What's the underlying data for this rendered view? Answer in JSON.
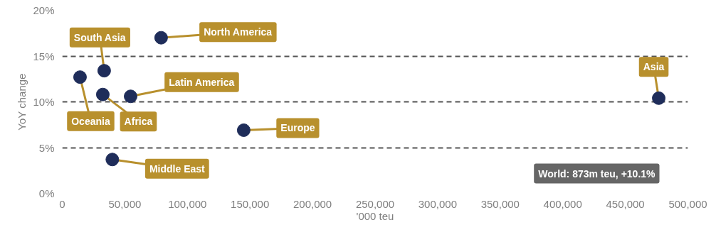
{
  "chart_data": {
    "type": "scatter",
    "xlabel": "'000 teu",
    "ylabel": "YoY change",
    "x": [
      14200,
      33500,
      32400,
      54600,
      79000,
      145000,
      40000,
      476700
    ],
    "series": [
      {
        "color": "#1f2d5a",
        "values": [
          12.7,
          13.4,
          10.8,
          10.6,
          17.0,
          6.9,
          3.7,
          10.4
        ]
      }
    ],
    "xlim": [
      0,
      500000
    ],
    "xticks": [
      {
        "value": 0,
        "label": "0"
      },
      {
        "value": 50000,
        "label": "50,000"
      },
      {
        "value": 100000,
        "label": "100,000"
      },
      {
        "value": 150000,
        "label": "150,000"
      },
      {
        "value": 200000,
        "label": "200,000"
      },
      {
        "value": 250000,
        "label": "250,000"
      },
      {
        "value": 300000,
        "label": "300,000"
      },
      {
        "value": 350000,
        "label": "350,000"
      },
      {
        "value": 400000,
        "label": "400,000"
      },
      {
        "value": 450000,
        "label": "450,000"
      },
      {
        "value": 500000,
        "label": "500,000"
      }
    ],
    "ylim": [
      0,
      20
    ],
    "yticks": [
      {
        "value": 0,
        "label": "0%"
      },
      {
        "value": 5,
        "label": "5%"
      },
      {
        "value": 10,
        "label": "10%"
      },
      {
        "value": 15,
        "label": "15%"
      },
      {
        "value": 20,
        "label": "20%"
      }
    ],
    "grid": "y",
    "marker": "circle",
    "annotations": [
      {
        "text": "Oceania",
        "x": 14200,
        "y": 12.7
      },
      {
        "text": "South Asia",
        "x": 33500,
        "y": 13.4
      },
      {
        "text": "Africa",
        "x": 32400,
        "y": 10.8
      },
      {
        "text": "Latin America",
        "x": 54600,
        "y": 10.6
      },
      {
        "text": "North America",
        "x": 79000,
        "y": 17.0
      },
      {
        "text": "Europe",
        "x": 145000,
        "y": 6.9
      },
      {
        "text": "Middle East",
        "x": 40000,
        "y": 3.7
      },
      {
        "text": "Asia",
        "x": 476700,
        "y": 10.4
      },
      "World: 873m teu, +10.1%"
    ]
  }
}
